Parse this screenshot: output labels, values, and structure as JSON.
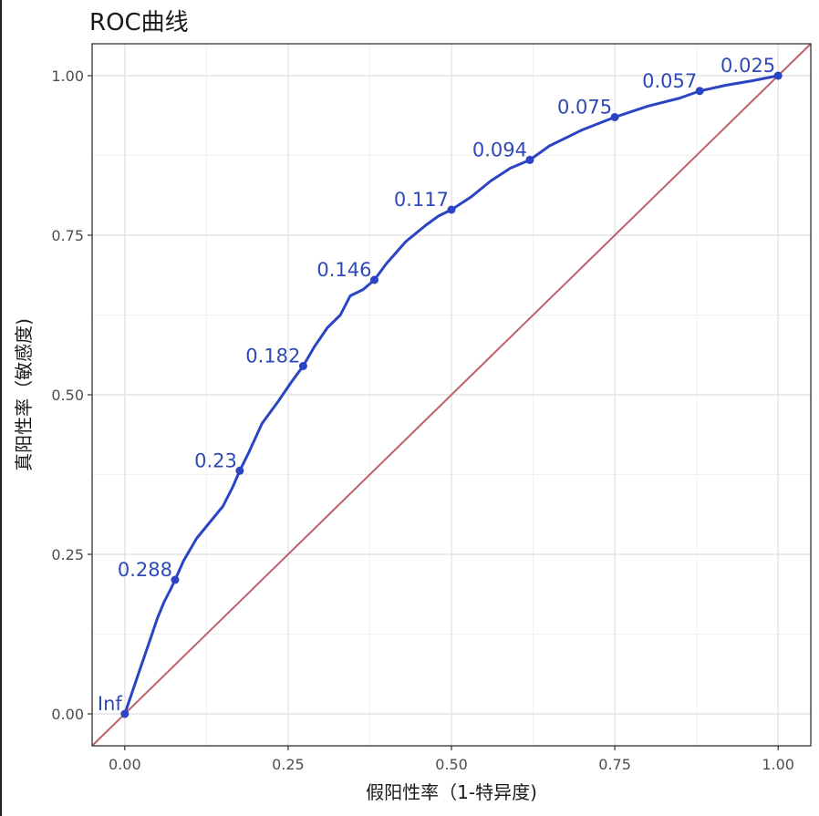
{
  "colors": {
    "curve": "#2a44c4",
    "diagonal": "#c0606d",
    "label": "#2f4ab5",
    "grid_major": "#e3e3e3",
    "grid_minor": "#f0f0f0",
    "panel_border": "#333333"
  },
  "chart_data": {
    "type": "line",
    "title": "ROC曲线",
    "xlabel": "假阳性率（1-特异度)",
    "ylabel": "真阳性率（敏感度)",
    "xlim": [
      -0.05,
      1.05
    ],
    "ylim": [
      -0.05,
      1.05
    ],
    "xticks": [
      {
        "value": 0.0,
        "label": "0.00"
      },
      {
        "value": 0.25,
        "label": "0.25"
      },
      {
        "value": 0.5,
        "label": "0.50"
      },
      {
        "value": 0.75,
        "label": "0.75"
      },
      {
        "value": 1.0,
        "label": "1.00"
      }
    ],
    "yticks": [
      {
        "value": 0.0,
        "label": "0.00"
      },
      {
        "value": 0.25,
        "label": "0.25"
      },
      {
        "value": 0.5,
        "label": "0.50"
      },
      {
        "value": 0.75,
        "label": "0.75"
      },
      {
        "value": 1.0,
        "label": "1.00"
      }
    ],
    "grid": true,
    "diagonal": [
      [
        0,
        0
      ],
      [
        1,
        1
      ]
    ],
    "curve": [
      [
        0.0,
        0.0
      ],
      [
        0.01,
        0.03
      ],
      [
        0.02,
        0.06
      ],
      [
        0.03,
        0.09
      ],
      [
        0.04,
        0.12
      ],
      [
        0.05,
        0.15
      ],
      [
        0.06,
        0.175
      ],
      [
        0.07,
        0.195
      ],
      [
        0.077,
        0.21
      ],
      [
        0.09,
        0.24
      ],
      [
        0.11,
        0.275
      ],
      [
        0.13,
        0.3
      ],
      [
        0.15,
        0.325
      ],
      [
        0.165,
        0.355
      ],
      [
        0.176,
        0.381
      ],
      [
        0.19,
        0.41
      ],
      [
        0.21,
        0.455
      ],
      [
        0.235,
        0.49
      ],
      [
        0.255,
        0.52
      ],
      [
        0.273,
        0.545
      ],
      [
        0.29,
        0.575
      ],
      [
        0.31,
        0.605
      ],
      [
        0.33,
        0.625
      ],
      [
        0.345,
        0.655
      ],
      [
        0.365,
        0.665
      ],
      [
        0.382,
        0.68
      ],
      [
        0.4,
        0.705
      ],
      [
        0.43,
        0.74
      ],
      [
        0.46,
        0.765
      ],
      [
        0.48,
        0.78
      ],
      [
        0.5,
        0.79
      ],
      [
        0.53,
        0.81
      ],
      [
        0.56,
        0.835
      ],
      [
        0.59,
        0.855
      ],
      [
        0.62,
        0.868
      ],
      [
        0.65,
        0.89
      ],
      [
        0.7,
        0.915
      ],
      [
        0.75,
        0.935
      ],
      [
        0.8,
        0.952
      ],
      [
        0.85,
        0.965
      ],
      [
        0.88,
        0.976
      ],
      [
        0.92,
        0.985
      ],
      [
        0.96,
        0.992
      ],
      [
        1.0,
        1.0
      ]
    ],
    "points": [
      {
        "x": 0.0,
        "y": 0.0,
        "label": "Inf"
      },
      {
        "x": 0.077,
        "y": 0.21,
        "label": "0.288"
      },
      {
        "x": 0.176,
        "y": 0.381,
        "label": "0.23"
      },
      {
        "x": 0.273,
        "y": 0.545,
        "label": "0.182"
      },
      {
        "x": 0.382,
        "y": 0.68,
        "label": "0.146"
      },
      {
        "x": 0.5,
        "y": 0.79,
        "label": "0.117"
      },
      {
        "x": 0.62,
        "y": 0.868,
        "label": "0.094"
      },
      {
        "x": 0.75,
        "y": 0.935,
        "label": "0.075"
      },
      {
        "x": 0.88,
        "y": 0.976,
        "label": "0.057"
      },
      {
        "x": 1.0,
        "y": 1.0,
        "label": "0.025"
      }
    ]
  }
}
